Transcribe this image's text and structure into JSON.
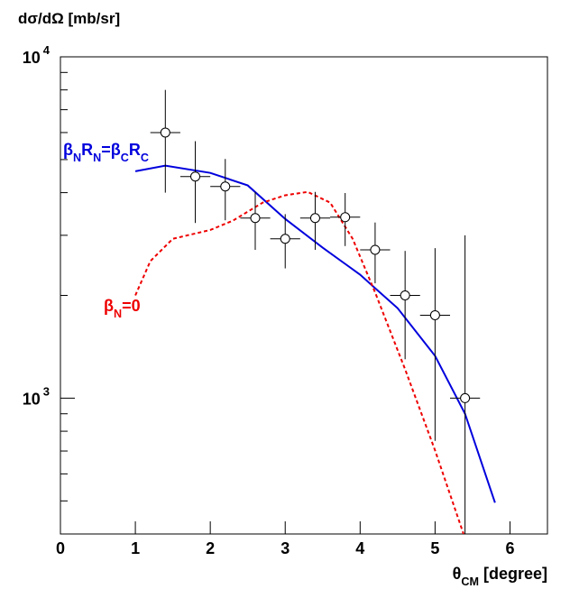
{
  "chart_data": {
    "type": "scatter",
    "ylabel": [
      {
        "text": "dσ/dΩ"
      },
      {
        "text": " [mb/sr]"
      }
    ],
    "xlabel": [
      {
        "text": "θ"
      },
      {
        "text": "CM",
        "sub": true
      },
      {
        "text": " [degree]"
      }
    ],
    "xlim": [
      0,
      6.5
    ],
    "xticks": [
      0,
      1,
      2,
      3,
      4,
      5,
      6
    ],
    "ylim": [
      400,
      10000
    ],
    "log_y": true,
    "yticks": [
      {
        "value": 1000,
        "label": "10",
        "exponent": "3"
      },
      {
        "value": 10000,
        "label": "10",
        "exponent": "4"
      }
    ],
    "yminorticks": [
      400,
      500,
      600,
      700,
      800,
      900,
      2000,
      3000,
      4000,
      5000,
      6000,
      7000,
      8000,
      9000
    ],
    "points": {
      "x": [
        1.4,
        1.8,
        2.2,
        2.6,
        3.0,
        3.4,
        3.8,
        4.2,
        4.6,
        5.0,
        5.4
      ],
      "values": [
        6000,
        4460,
        4170,
        3370,
        2930,
        3370,
        3390,
        2720,
        2000,
        1750,
        1000
      ],
      "errors": [
        2000,
        1200,
        850,
        650,
        530,
        650,
        600,
        550,
        700,
        1000,
        2000
      ],
      "xerrors": [
        0.2,
        0.2,
        0.2,
        0.2,
        0.2,
        0.2,
        0.2,
        0.2,
        0.2,
        0.2,
        0.2
      ]
    },
    "curves": [
      {
        "color": "#0000dd",
        "dashed": false,
        "x": [
          1.0,
          1.4,
          2.0,
          2.5,
          3.0,
          3.5,
          4.0,
          4.2,
          4.5,
          5.0,
          5.4,
          5.8
        ],
        "values": [
          4620,
          4800,
          4570,
          4200,
          3350,
          2760,
          2300,
          2100,
          1835,
          1330,
          900,
          494
        ]
      },
      {
        "color": "#ee0000",
        "dashed": true,
        "x": [
          1.0,
          1.2,
          1.5,
          2.0,
          2.3,
          2.7,
          3.0,
          3.3,
          3.6,
          3.9,
          4.2,
          4.6,
          5.0,
          5.38
        ],
        "values": [
          2000,
          2520,
          2930,
          3110,
          3310,
          3740,
          3930,
          4020,
          3740,
          2930,
          2040,
          1215,
          703,
          400
        ]
      }
    ],
    "annotations": [
      {
        "color": "#0000dd",
        "segments": [
          {
            "text": "β"
          },
          {
            "text": "N",
            "sub": true
          },
          {
            "text": "R"
          },
          {
            "text": "N",
            "sub": true
          },
          {
            "text": "=β"
          },
          {
            "text": "C",
            "sub": true
          },
          {
            "text": "R"
          },
          {
            "text": "C",
            "sub": true
          }
        ]
      },
      {
        "color": "#ee0000",
        "segments": [
          {
            "text": "β"
          },
          {
            "text": "N",
            "sub": true
          },
          {
            "text": "=0"
          }
        ]
      }
    ]
  }
}
